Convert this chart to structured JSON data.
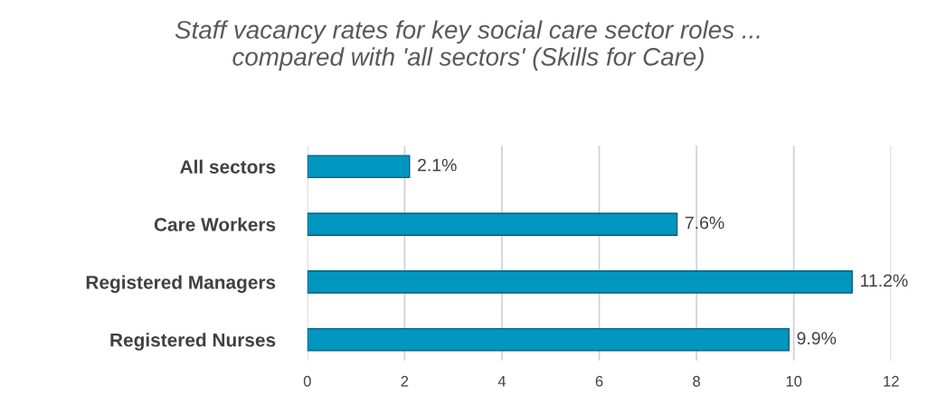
{
  "chart_data": {
    "type": "bar",
    "orientation": "horizontal",
    "title": "Staff vacancy rates for key social care sector roles ...\ncompared with 'all sectors' (Skills for Care)",
    "categories": [
      "All sectors",
      "Care Workers",
      "Registered Managers",
      "Registered Nurses"
    ],
    "values": [
      2.1,
      7.6,
      11.2,
      9.9
    ],
    "value_labels": [
      "2.1%",
      "7.6%",
      "11.2%",
      "9.9%"
    ],
    "color": "#0096c0",
    "xlim": [
      0,
      12
    ],
    "xticks": [
      0,
      2,
      4,
      6,
      8,
      10,
      12
    ],
    "grid": "x",
    "legend": false
  }
}
